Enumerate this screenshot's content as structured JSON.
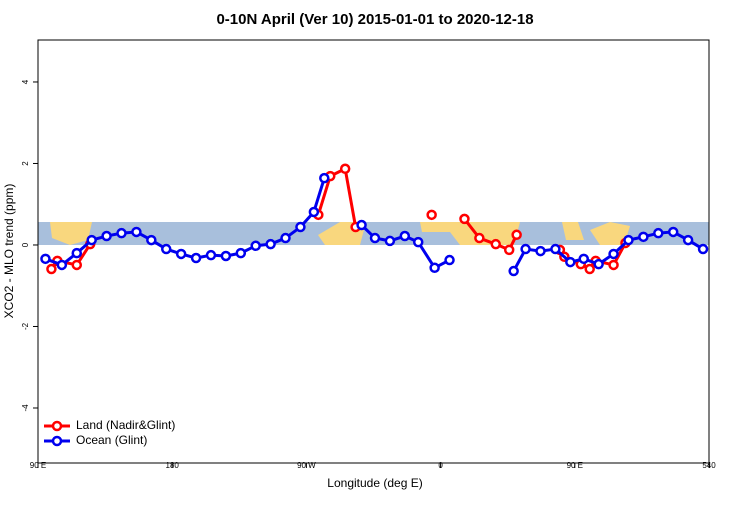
{
  "chart_data": {
    "type": "line",
    "title": "0-10N April (Ver 10)   2015-01-01 to 2020-12-18",
    "x_label": "Longitude (deg E)",
    "y_label": "XCO2 - MLO trend (ppm)",
    "xlim": [
      90,
      540
    ],
    "xticks": [
      {
        "value": 90,
        "label": "90 E"
      },
      180,
      {
        "value": 270,
        "label": "90 W"
      },
      {
        "value": 360,
        "label": "0"
      },
      {
        "value": 450,
        "label": "90 E"
      },
      540
    ],
    "ylim": [
      -5.35,
      5.03
    ],
    "yticks": [
      -4,
      -2,
      0,
      2,
      4
    ],
    "legend": "bottom-left",
    "series": [
      {
        "name": "Land (Nadir&Glint)",
        "color": "#ff0000",
        "x": [
          99,
          103,
          116,
          125,
          null,
          278,
          286,
          296,
          303,
          null,
          354,
          null,
          376,
          386,
          397,
          406,
          411,
          null,
          440,
          443,
          454,
          460,
          464,
          476,
          484
        ],
        "values": [
          -0.59,
          -0.39,
          -0.49,
          0.02,
          null,
          0.74,
          1.69,
          1.87,
          0.44,
          null,
          0.74,
          null,
          0.64,
          0.17,
          0.02,
          -0.12,
          0.25,
          null,
          -0.12,
          -0.29,
          -0.47,
          -0.59,
          -0.39,
          -0.49,
          0.05
        ]
      },
      {
        "name": "Ocean (Glint)",
        "color": "#0000ee",
        "x": [
          95,
          106,
          116,
          126,
          136,
          146,
          156,
          166,
          176,
          186,
          196,
          206,
          216,
          226,
          236,
          246,
          256,
          266,
          275,
          282,
          null,
          307,
          316,
          326,
          336,
          345,
          356,
          366,
          null,
          409,
          417,
          427,
          437,
          447,
          456,
          466,
          476,
          486,
          496,
          506,
          516,
          526,
          536
        ],
        "values": [
          -0.34,
          -0.49,
          -0.2,
          0.12,
          0.22,
          0.29,
          0.32,
          0.12,
          -0.1,
          -0.22,
          -0.32,
          -0.25,
          -0.27,
          -0.2,
          -0.02,
          0.02,
          0.17,
          0.44,
          0.81,
          1.64,
          null,
          0.49,
          0.17,
          0.1,
          0.22,
          0.07,
          -0.56,
          -0.37,
          null,
          -0.64,
          -0.1,
          -0.15,
          -0.1,
          -0.42,
          -0.34,
          -0.47,
          -0.22,
          0.12,
          0.2,
          0.29,
          0.32,
          0.12,
          -0.1
        ]
      }
    ]
  }
}
